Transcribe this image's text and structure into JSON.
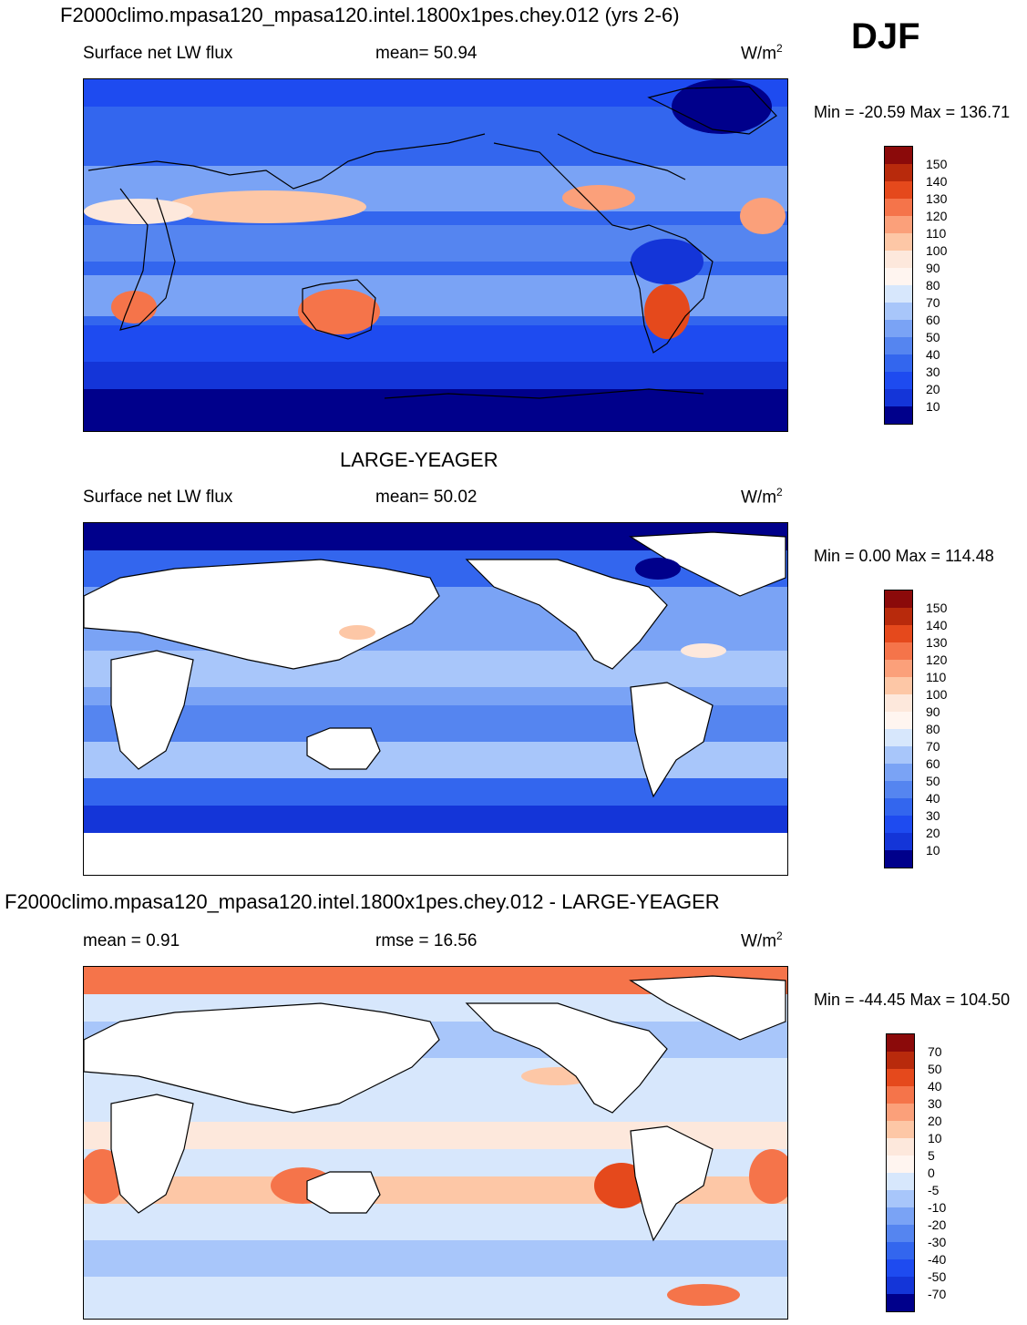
{
  "figure": {
    "title": "F2000climo.mpasa120_mpasa120.intel.1800x1pes.chey.012 (yrs 2-6)",
    "season": "DJF"
  },
  "panels": [
    {
      "id": "model",
      "header": "",
      "left_label": "Surface net LW flux",
      "center_label": "mean=  50.94",
      "unit_base": "W/m",
      "unit_exp": "2",
      "minmax": "Min = -20.59 Max = 136.71",
      "colorbar": [
        "150",
        "140",
        "130",
        "120",
        "110",
        "100",
        "90",
        "80",
        "70",
        "60",
        "50",
        "40",
        "30",
        "20",
        "10"
      ]
    },
    {
      "id": "obs",
      "header": "LARGE-YEAGER",
      "left_label": "Surface net LW flux",
      "center_label": "mean=  50.02",
      "unit_base": "W/m",
      "unit_exp": "2",
      "minmax": "Min =   0.00 Max = 114.48",
      "colorbar": [
        "150",
        "140",
        "130",
        "120",
        "110",
        "100",
        "90",
        "80",
        "70",
        "60",
        "50",
        "40",
        "30",
        "20",
        "10"
      ]
    },
    {
      "id": "diff",
      "header": "F2000climo.mpasa120_mpasa120.intel.1800x1pes.chey.012 - LARGE-YEAGER",
      "left_label": "mean =   0.91",
      "center_label": "rmse =  16.56",
      "unit_base": "W/m",
      "unit_exp": "2",
      "minmax": "Min = -44.45 Max = 104.50",
      "colorbar": [
        "70",
        "50",
        "40",
        "30",
        "20",
        "10",
        "5",
        "0",
        "-5",
        "-10",
        "-20",
        "-30",
        "-40",
        "-50",
        "-70"
      ]
    }
  ],
  "colors": {
    "abs_scale": [
      "#00008b",
      "#0a1fb4",
      "#1435d8",
      "#1e4bf0",
      "#3366ee",
      "#5585f0",
      "#7aa3f5",
      "#a8c6fa",
      "#d7e7fc",
      "#fde8dc",
      "#fdc7a6",
      "#fba07a",
      "#f5744a",
      "#e5491c",
      "#b82a0c",
      "#8b0a0a"
    ],
    "diff_scale": [
      "#00008b",
      "#0a1fb4",
      "#1435d8",
      "#1e4bf0",
      "#3366ee",
      "#5585f0",
      "#7aa3f5",
      "#a8c6fa",
      "#d7e7fc",
      "#fde8dc",
      "#fdc7a6",
      "#fba07a",
      "#f5744a",
      "#e5491c",
      "#b82a0c",
      "#8b0a0a"
    ]
  }
}
